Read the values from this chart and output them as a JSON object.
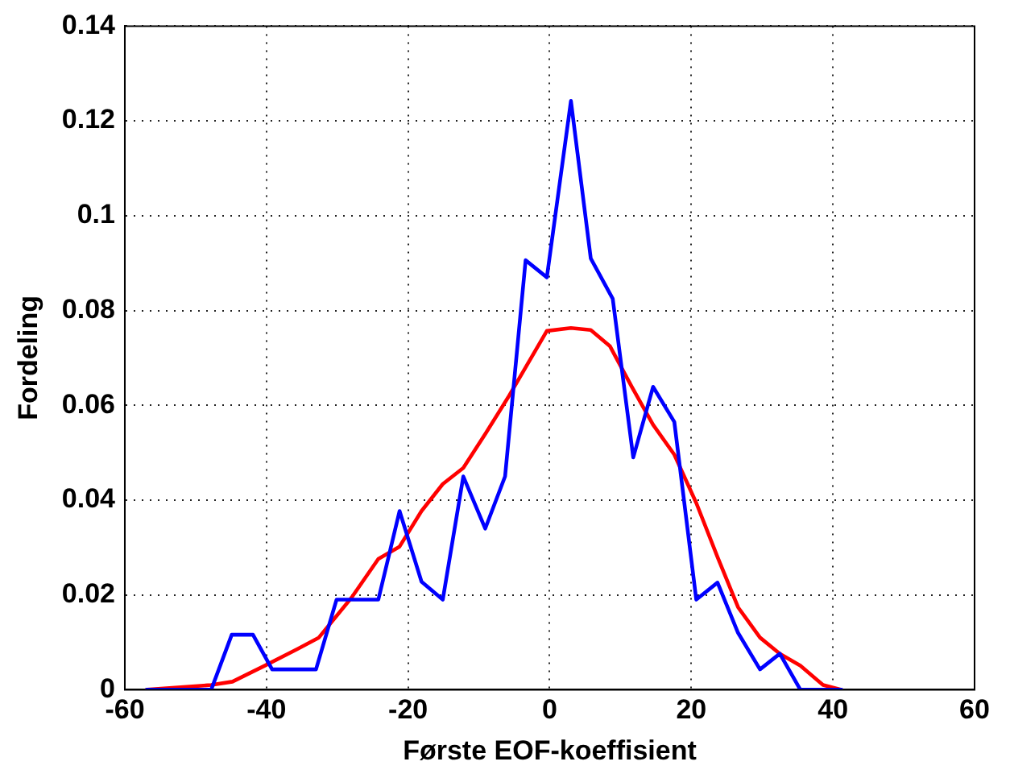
{
  "chart_data": {
    "type": "line",
    "xlabel": "Første EOF-koeffisient",
    "ylabel": "Fordeling",
    "xlim": [
      -60,
      60
    ],
    "ylim": [
      0,
      0.14
    ],
    "xticks": [
      -60,
      -40,
      -20,
      0,
      20,
      40,
      60
    ],
    "yticks": [
      0,
      0.02,
      0.04,
      0.06,
      0.08,
      0.1,
      0.12,
      0.14
    ],
    "grid": true,
    "marker": "none",
    "series": [
      {
        "color": "#0000ff",
        "x": [
          -56.9,
          -47.8,
          -44.9,
          -41.9,
          -39.2,
          -33,
          -30.1,
          -24.2,
          -21.2,
          -18.1,
          -15.1,
          -12.2,
          -9.1,
          -6.3,
          -3.4,
          -0.4,
          3,
          5.8,
          8.9,
          11.8,
          14.6,
          17.6,
          20.7,
          23.7,
          26.6,
          29.7,
          32.5,
          35.4,
          41.2
        ],
        "values": [
          0,
          0,
          0.0116,
          0.0116,
          0.0043,
          0.0043,
          0.019,
          0.019,
          0.0377,
          0.0228,
          0.019,
          0.045,
          0.034,
          0.045,
          0.0906,
          0.087,
          0.1242,
          0.091,
          0.0825,
          0.049,
          0.0639,
          0.0565,
          0.019,
          0.0226,
          0.012,
          0.0043,
          0.0076,
          0,
          0
        ]
      },
      {
        "color": "#ff0000",
        "x": [
          -56.9,
          -47.8,
          -44.8,
          -40.2,
          -35.6,
          -32.6,
          -28,
          -24.2,
          -21.2,
          -18.1,
          -15.1,
          -12.2,
          -9,
          -5.9,
          -0.4,
          3,
          5.8,
          8.5,
          11.6,
          14.6,
          17.6,
          20.7,
          23.7,
          26.6,
          29.7,
          32.5,
          35.4,
          38.6,
          41.2
        ],
        "values": [
          0,
          0.001,
          0.0017,
          0.0051,
          0.0086,
          0.011,
          0.0194,
          0.0276,
          0.0302,
          0.0377,
          0.0434,
          0.0468,
          0.0542,
          0.0616,
          0.0757,
          0.0763,
          0.0759,
          0.0725,
          0.0639,
          0.0559,
          0.0496,
          0.0394,
          0.028,
          0.0174,
          0.011,
          0.0076,
          0.0051,
          0.001,
          0
        ]
      }
    ]
  }
}
